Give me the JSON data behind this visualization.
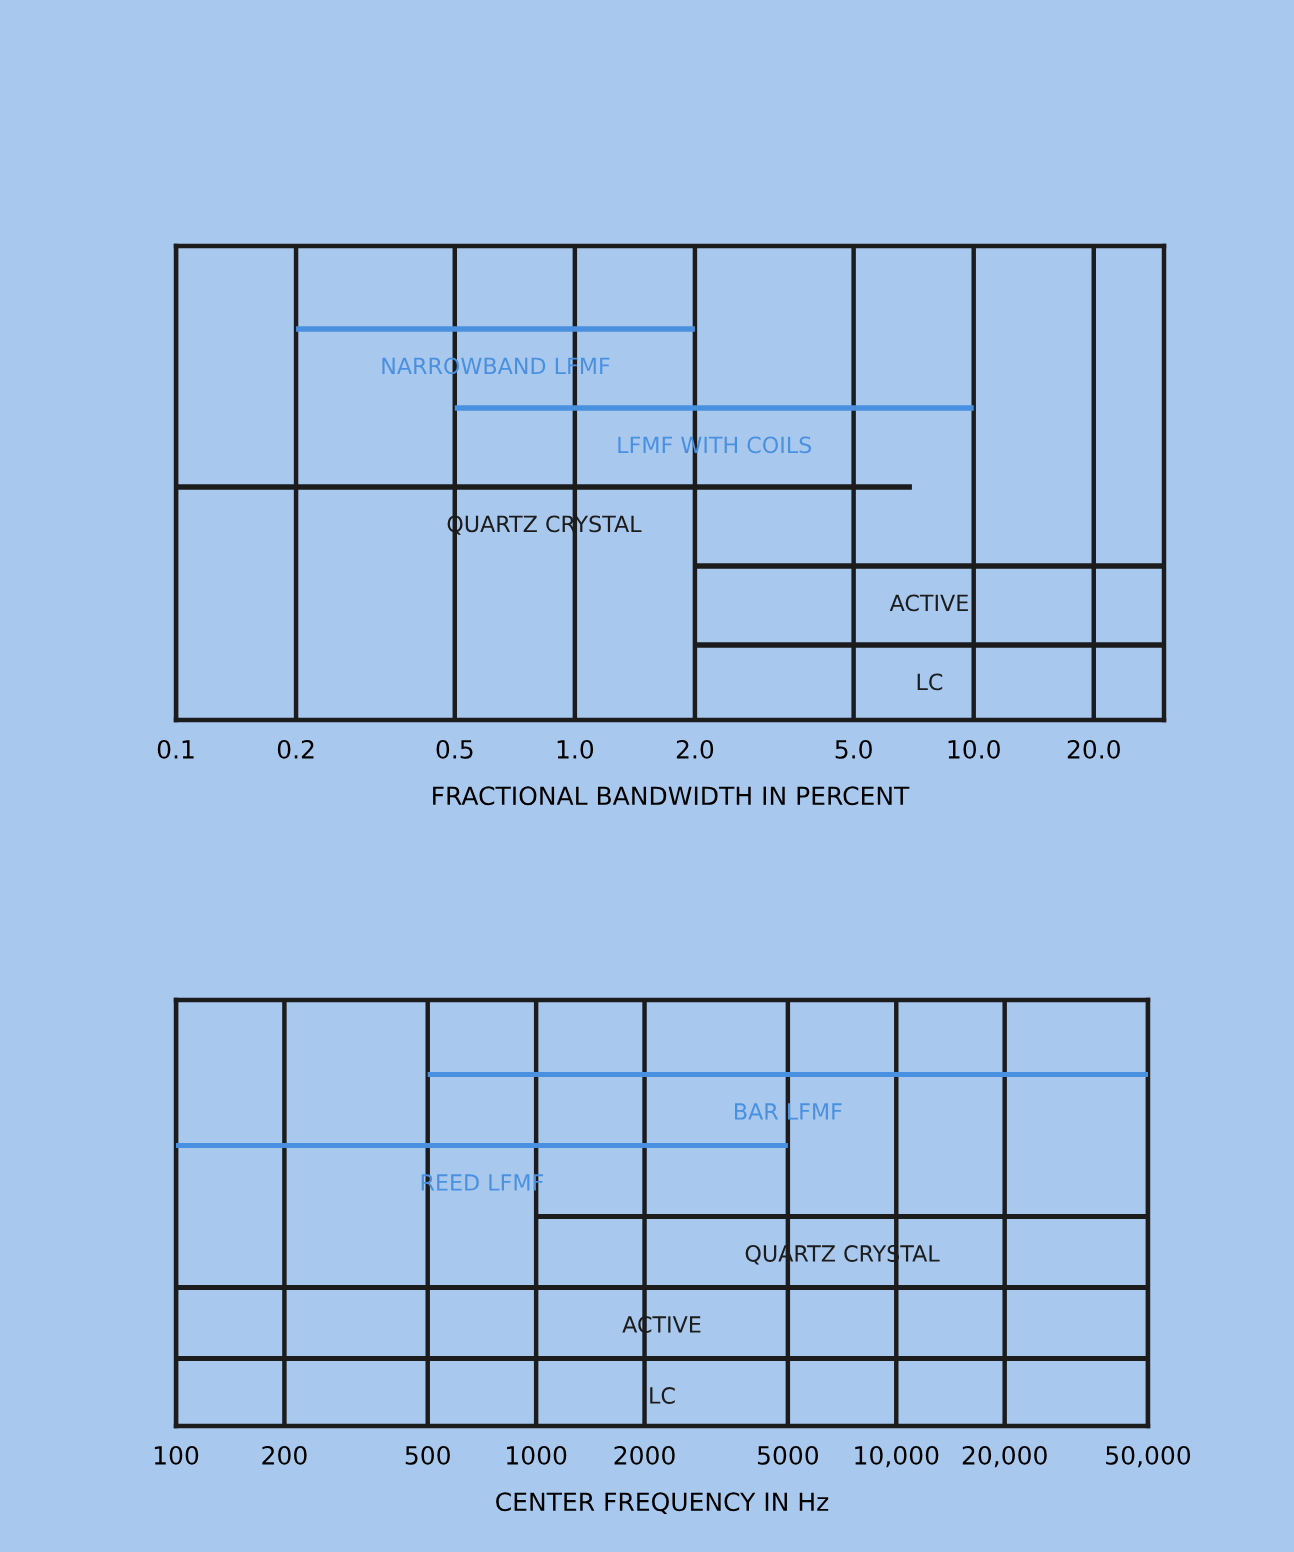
{
  "chart_data": [
    {
      "type": "bar",
      "orientation": "horizontal",
      "xlabel": "FRACTIONAL BANDWIDTH IN PERCENT",
      "categories": [
        "NARROWBAND LFMF",
        "LFMF WITH COILS",
        "QUARTZ CRYSTAL",
        "ACTIVE",
        "LC"
      ],
      "base": [
        0.2,
        0.5,
        0.1,
        2.0,
        2.0
      ],
      "values": [
        1.8,
        9.5,
        6.9,
        28,
        28
      ],
      "colors": [
        "#4a90e0",
        "#4a90e0",
        "#1c1c1c",
        "#1c1c1c",
        "#1c1c1c"
      ],
      "xlim": [
        0.1,
        30
      ],
      "xticks": [
        {
          "value": 0.1,
          "label": "0.1"
        },
        {
          "value": 0.2,
          "label": "0.2"
        },
        {
          "value": 0.5,
          "label": "0.5"
        },
        {
          "value": 1,
          "label": "1.0"
        },
        {
          "value": 2,
          "label": "2.0"
        },
        {
          "value": 5,
          "label": "5.0"
        },
        {
          "value": 10,
          "label": "10.0"
        },
        {
          "value": 20,
          "label": "20.0"
        }
      ],
      "log": "x",
      "grid": "x",
      "tick_labels": "x"
    },
    {
      "type": "bar",
      "orientation": "horizontal",
      "xlabel": "CENTER FREQUENCY IN Hz",
      "categories": [
        "BAR LFMF",
        "REED LFMF",
        "QUARTZ CRYSTAL",
        "ACTIVE",
        "LC"
      ],
      "base": [
        500,
        100,
        1000,
        100,
        100
      ],
      "values": [
        49500,
        4900,
        49000,
        49900,
        49900
      ],
      "colors": [
        "#4a90e0",
        "#4a90e0",
        "#1c1c1c",
        "#1c1c1c",
        "#1c1c1c"
      ],
      "xlim": [
        100,
        50000
      ],
      "xticks": [
        100,
        200,
        500,
        1000,
        2000,
        5000,
        {
          "value": 10000,
          "label": "10,000"
        },
        {
          "value": 20000,
          "label": "20,000"
        },
        {
          "value": 50000,
          "label": "50,000"
        }
      ],
      "log": "x",
      "grid": "x",
      "tick_labels": "x"
    }
  ]
}
